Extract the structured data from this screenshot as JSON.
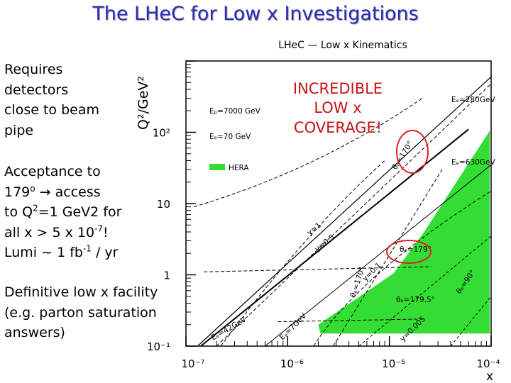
{
  "slide": {
    "title": "The LHeC for Low x Investigations",
    "bullet1": "Requires detectors close to beam pipe",
    "bullet2": {
      "line1": "Acceptance to",
      "deg_num": "179",
      "deg_sym": "o",
      "arrow": "→",
      "access": "access",
      "q_pre": "to Q",
      "q_sup": "2",
      "q_post": "=1 GeV2 for",
      "x_pre": "all x > 5 x 10",
      "x_sup": "-7",
      "x_post": "!",
      "lumi_pre": "Lumi ~ 1 fb",
      "lumi_sup": "-1",
      "lumi_post": " / yr"
    },
    "bullet3": "Definitive low x facility (e.g. parton saturation answers)",
    "callout": [
      "INCREDIBLE",
      "LOW x",
      "COVERAGE!"
    ]
  },
  "chart_data": {
    "type": "line",
    "title": "LHeC — Low x Kinematics",
    "xlabel": "x",
    "ylabel": "Q²/GeV²",
    "x_scale": "log",
    "y_scale": "log",
    "xlim": [
      1e-07,
      0.0001
    ],
    "ylim": [
      0.1,
      1000
    ],
    "x_ticks": [
      "10⁻⁷",
      "10⁻⁶",
      "10⁻⁵",
      "10⁻⁴"
    ],
    "y_ticks": [
      "10⁻¹",
      "1",
      "10",
      "10²"
    ],
    "legend": [
      {
        "label": "Eₚ=7000 GeV",
        "kind": "text"
      },
      {
        "label": "Eₑ=70 GeV",
        "kind": "text"
      },
      {
        "label": "HERA",
        "kind": "swatch",
        "color": "#33dd33"
      }
    ],
    "electron_beam_labels": [
      "Eₑ=280GeV",
      "Eₑ=630GeV"
    ],
    "kinematic_lines": [
      {
        "label": "θₑ=179°",
        "type": "dashed"
      },
      {
        "label": "θₑ=179.5°",
        "type": "dashed"
      },
      {
        "label": "θₑ=170°",
        "type": "dashed"
      },
      {
        "label": "θₑ=90°",
        "type": "dashed"
      },
      {
        "label": "Eₑ=42GeV",
        "type": "dashed"
      },
      {
        "label": "Eₑ=7GeV",
        "type": "dashed"
      },
      {
        "label": "y=1",
        "type": "solid"
      },
      {
        "label": "y=0.5",
        "type": "dashed"
      },
      {
        "label": "y=0.1",
        "type": "dashed"
      },
      {
        "label": "y=0.005",
        "type": "dashed"
      }
    ],
    "hera_region_color": "#33dd33",
    "highlight_color": "#dd2222"
  }
}
